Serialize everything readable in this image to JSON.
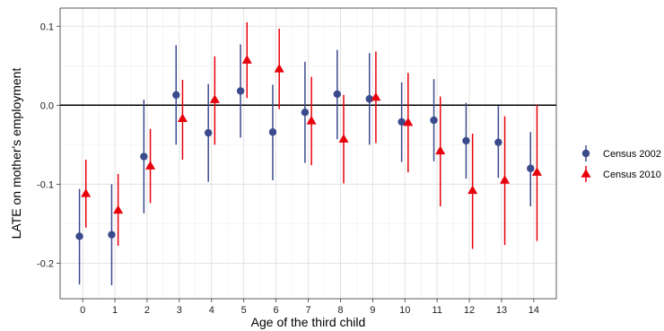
{
  "chart_data": {
    "type": "scatter",
    "xlabel": "Age of the third child",
    "ylabel": "LATE on mother's employment",
    "x": [
      0,
      1,
      2,
      3,
      4,
      5,
      6,
      7,
      8,
      9,
      10,
      11,
      12,
      13,
      14
    ],
    "xlim": [
      -0.7,
      14.7
    ],
    "ylim": [
      -0.245,
      0.123
    ],
    "y_ticks": [
      0.1,
      0.0,
      -0.1,
      -0.2
    ],
    "y_tick_labels": [
      "0.1",
      "0.0",
      "-0.1",
      "-0.2"
    ],
    "grid": true,
    "reference_line": 0,
    "legend_position": "right",
    "series": [
      {
        "name": "Census 2002",
        "marker": "circle",
        "color": "#3b4a8c",
        "offset": -0.1,
        "values": [
          -0.166,
          -0.164,
          -0.065,
          0.013,
          -0.035,
          0.018,
          -0.034,
          -0.009,
          0.014,
          0.008,
          -0.021,
          -0.019,
          -0.045,
          -0.047,
          -0.08
        ],
        "lower": [
          -0.227,
          -0.228,
          -0.137,
          -0.05,
          -0.097,
          -0.041,
          -0.095,
          -0.073,
          -0.043,
          -0.05,
          -0.072,
          -0.071,
          -0.093,
          -0.092,
          -0.128
        ],
        "upper": [
          -0.106,
          -0.1,
          0.007,
          0.076,
          0.027,
          0.077,
          0.026,
          0.055,
          0.07,
          0.066,
          0.029,
          0.033,
          0.003,
          -0.001,
          -0.034
        ]
      },
      {
        "name": "Census 2010",
        "marker": "triangle",
        "color": "#e8000b",
        "offset": 0.1,
        "values": [
          -0.112,
          -0.133,
          -0.077,
          -0.017,
          0.007,
          0.057,
          0.046,
          -0.02,
          -0.043,
          0.01,
          -0.022,
          -0.058,
          -0.108,
          -0.095,
          -0.085
        ],
        "lower": [
          -0.155,
          -0.178,
          -0.124,
          -0.069,
          -0.05,
          0.009,
          -0.005,
          -0.076,
          -0.099,
          -0.048,
          -0.085,
          -0.128,
          -0.182,
          -0.177,
          -0.172
        ],
        "upper": [
          -0.069,
          -0.087,
          -0.03,
          0.032,
          0.062,
          0.105,
          0.097,
          0.036,
          0.013,
          0.068,
          0.041,
          0.011,
          -0.036,
          -0.014,
          0.0
        ]
      }
    ]
  }
}
